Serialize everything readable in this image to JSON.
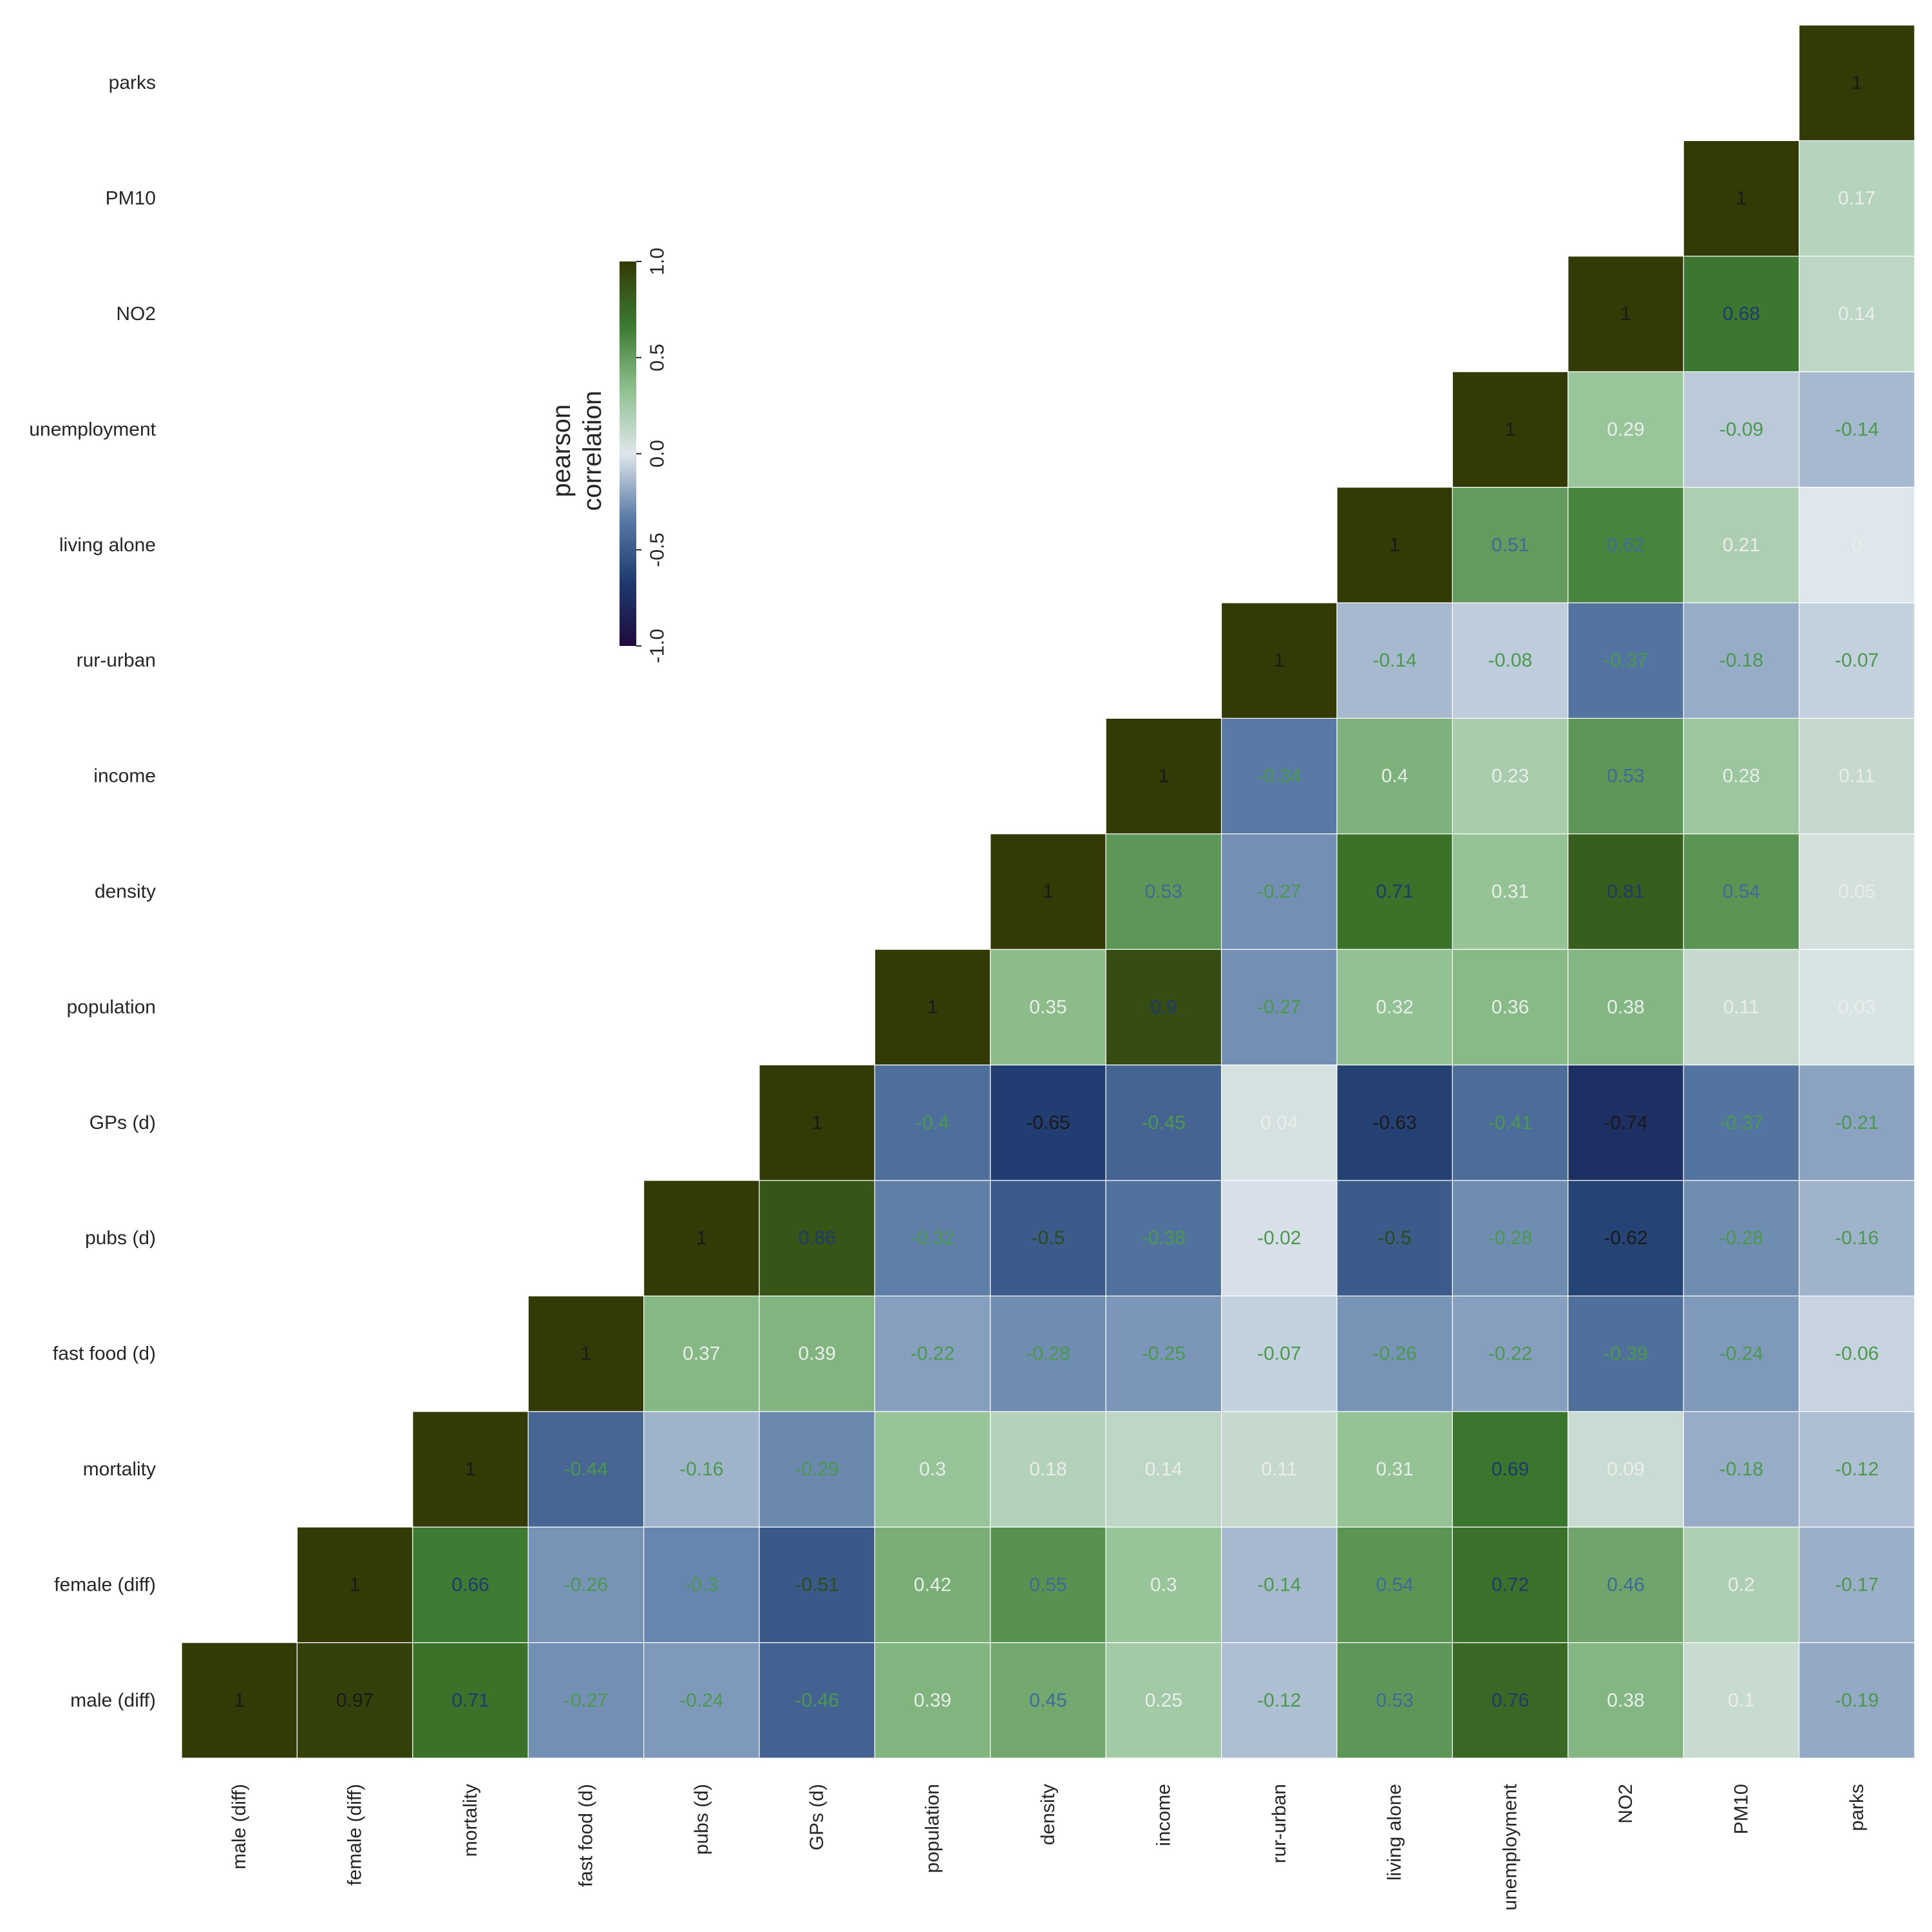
{
  "chart_data": {
    "type": "heatmap",
    "variables": [
      "male (diff)",
      "female (diff)",
      "mortality",
      "fast food (d)",
      "pubs (d)",
      "GPs (d)",
      "population",
      "density",
      "income",
      "rur-urban",
      "living alone",
      "unemployment",
      "NO2",
      "PM10",
      "parks"
    ],
    "values": [
      [
        1,
        0.97,
        0.71,
        -0.27,
        -0.24,
        -0.46,
        0.39,
        0.45,
        0.25,
        -0.12,
        0.53,
        0.76,
        0.38,
        0.1,
        -0.19
      ],
      [
        0.97,
        1,
        0.66,
        -0.26,
        -0.3,
        -0.51,
        0.42,
        0.55,
        0.3,
        -0.14,
        0.54,
        0.72,
        0.46,
        0.2,
        -0.17
      ],
      [
        0.71,
        0.66,
        1,
        -0.44,
        -0.16,
        -0.29,
        0.3,
        0.18,
        0.14,
        0.11,
        0.31,
        0.69,
        0.09,
        -0.18,
        -0.12
      ],
      [
        -0.27,
        -0.26,
        -0.44,
        1,
        0.37,
        0.39,
        -0.22,
        -0.28,
        -0.25,
        -0.07,
        -0.26,
        -0.22,
        -0.39,
        -0.24,
        -0.06
      ],
      [
        -0.24,
        -0.3,
        -0.16,
        0.37,
        1,
        0.86,
        -0.32,
        -0.5,
        -0.38,
        -0.02,
        -0.5,
        -0.28,
        -0.62,
        -0.28,
        -0.16
      ],
      [
        -0.46,
        -0.51,
        -0.29,
        0.39,
        0.86,
        1,
        -0.4,
        -0.65,
        -0.45,
        0.04,
        -0.63,
        -0.41,
        -0.74,
        -0.37,
        -0.21
      ],
      [
        0.39,
        0.42,
        0.3,
        -0.22,
        -0.32,
        -0.4,
        1,
        0.35,
        0.9,
        -0.27,
        0.32,
        0.36,
        0.38,
        0.11,
        0.03
      ],
      [
        0.45,
        0.55,
        0.18,
        -0.28,
        -0.5,
        -0.65,
        0.35,
        1,
        0.53,
        -0.27,
        0.71,
        0.31,
        0.81,
        0.54,
        0.05
      ],
      [
        0.25,
        0.3,
        0.14,
        -0.25,
        -0.38,
        -0.45,
        0.9,
        0.53,
        1,
        -0.34,
        0.4,
        0.23,
        0.53,
        0.28,
        0.11
      ],
      [
        -0.12,
        -0.14,
        0.11,
        -0.07,
        -0.02,
        0.04,
        -0.27,
        -0.27,
        -0.34,
        1,
        -0.14,
        -0.08,
        -0.37,
        -0.18,
        -0.07
      ],
      [
        0.53,
        0.54,
        0.31,
        -0.26,
        -0.5,
        -0.63,
        0.32,
        0.71,
        0.4,
        -0.14,
        1,
        0.51,
        0.62,
        0.21,
        0
      ],
      [
        0.76,
        0.72,
        0.69,
        -0.22,
        -0.28,
        -0.41,
        0.36,
        0.31,
        0.23,
        -0.08,
        0.51,
        1,
        0.29,
        -0.09,
        -0.14
      ],
      [
        0.38,
        0.46,
        0.09,
        -0.39,
        -0.62,
        -0.74,
        0.38,
        0.81,
        0.53,
        -0.37,
        0.62,
        0.29,
        1,
        0.68,
        0.14
      ],
      [
        0.1,
        0.2,
        -0.18,
        -0.24,
        -0.28,
        -0.37,
        0.11,
        0.54,
        0.28,
        -0.18,
        0.21,
        -0.09,
        0.68,
        1,
        0.17
      ],
      [
        -0.19,
        -0.17,
        -0.12,
        -0.06,
        -0.16,
        -0.21,
        0.03,
        0.05,
        0.11,
        -0.07,
        0,
        -0.14,
        0.14,
        0.17,
        1
      ]
    ],
    "mask": "upper triangle shown only (lower-left blank)",
    "colorbar": {
      "label_line1": "pearson",
      "label_line2": "correlation",
      "vmin": -1.0,
      "vmax": 1.0,
      "ticks": [
        "-1.0",
        "-0.5",
        "0.0",
        "0.5",
        "1.0"
      ],
      "colormap": [
        "#1f0a3c",
        "#1e3a6e",
        "#5a7ba6",
        "#dfe6ec",
        "#8fc08f",
        "#3b7a30",
        "#333a05"
      ]
    },
    "annotations": true
  }
}
